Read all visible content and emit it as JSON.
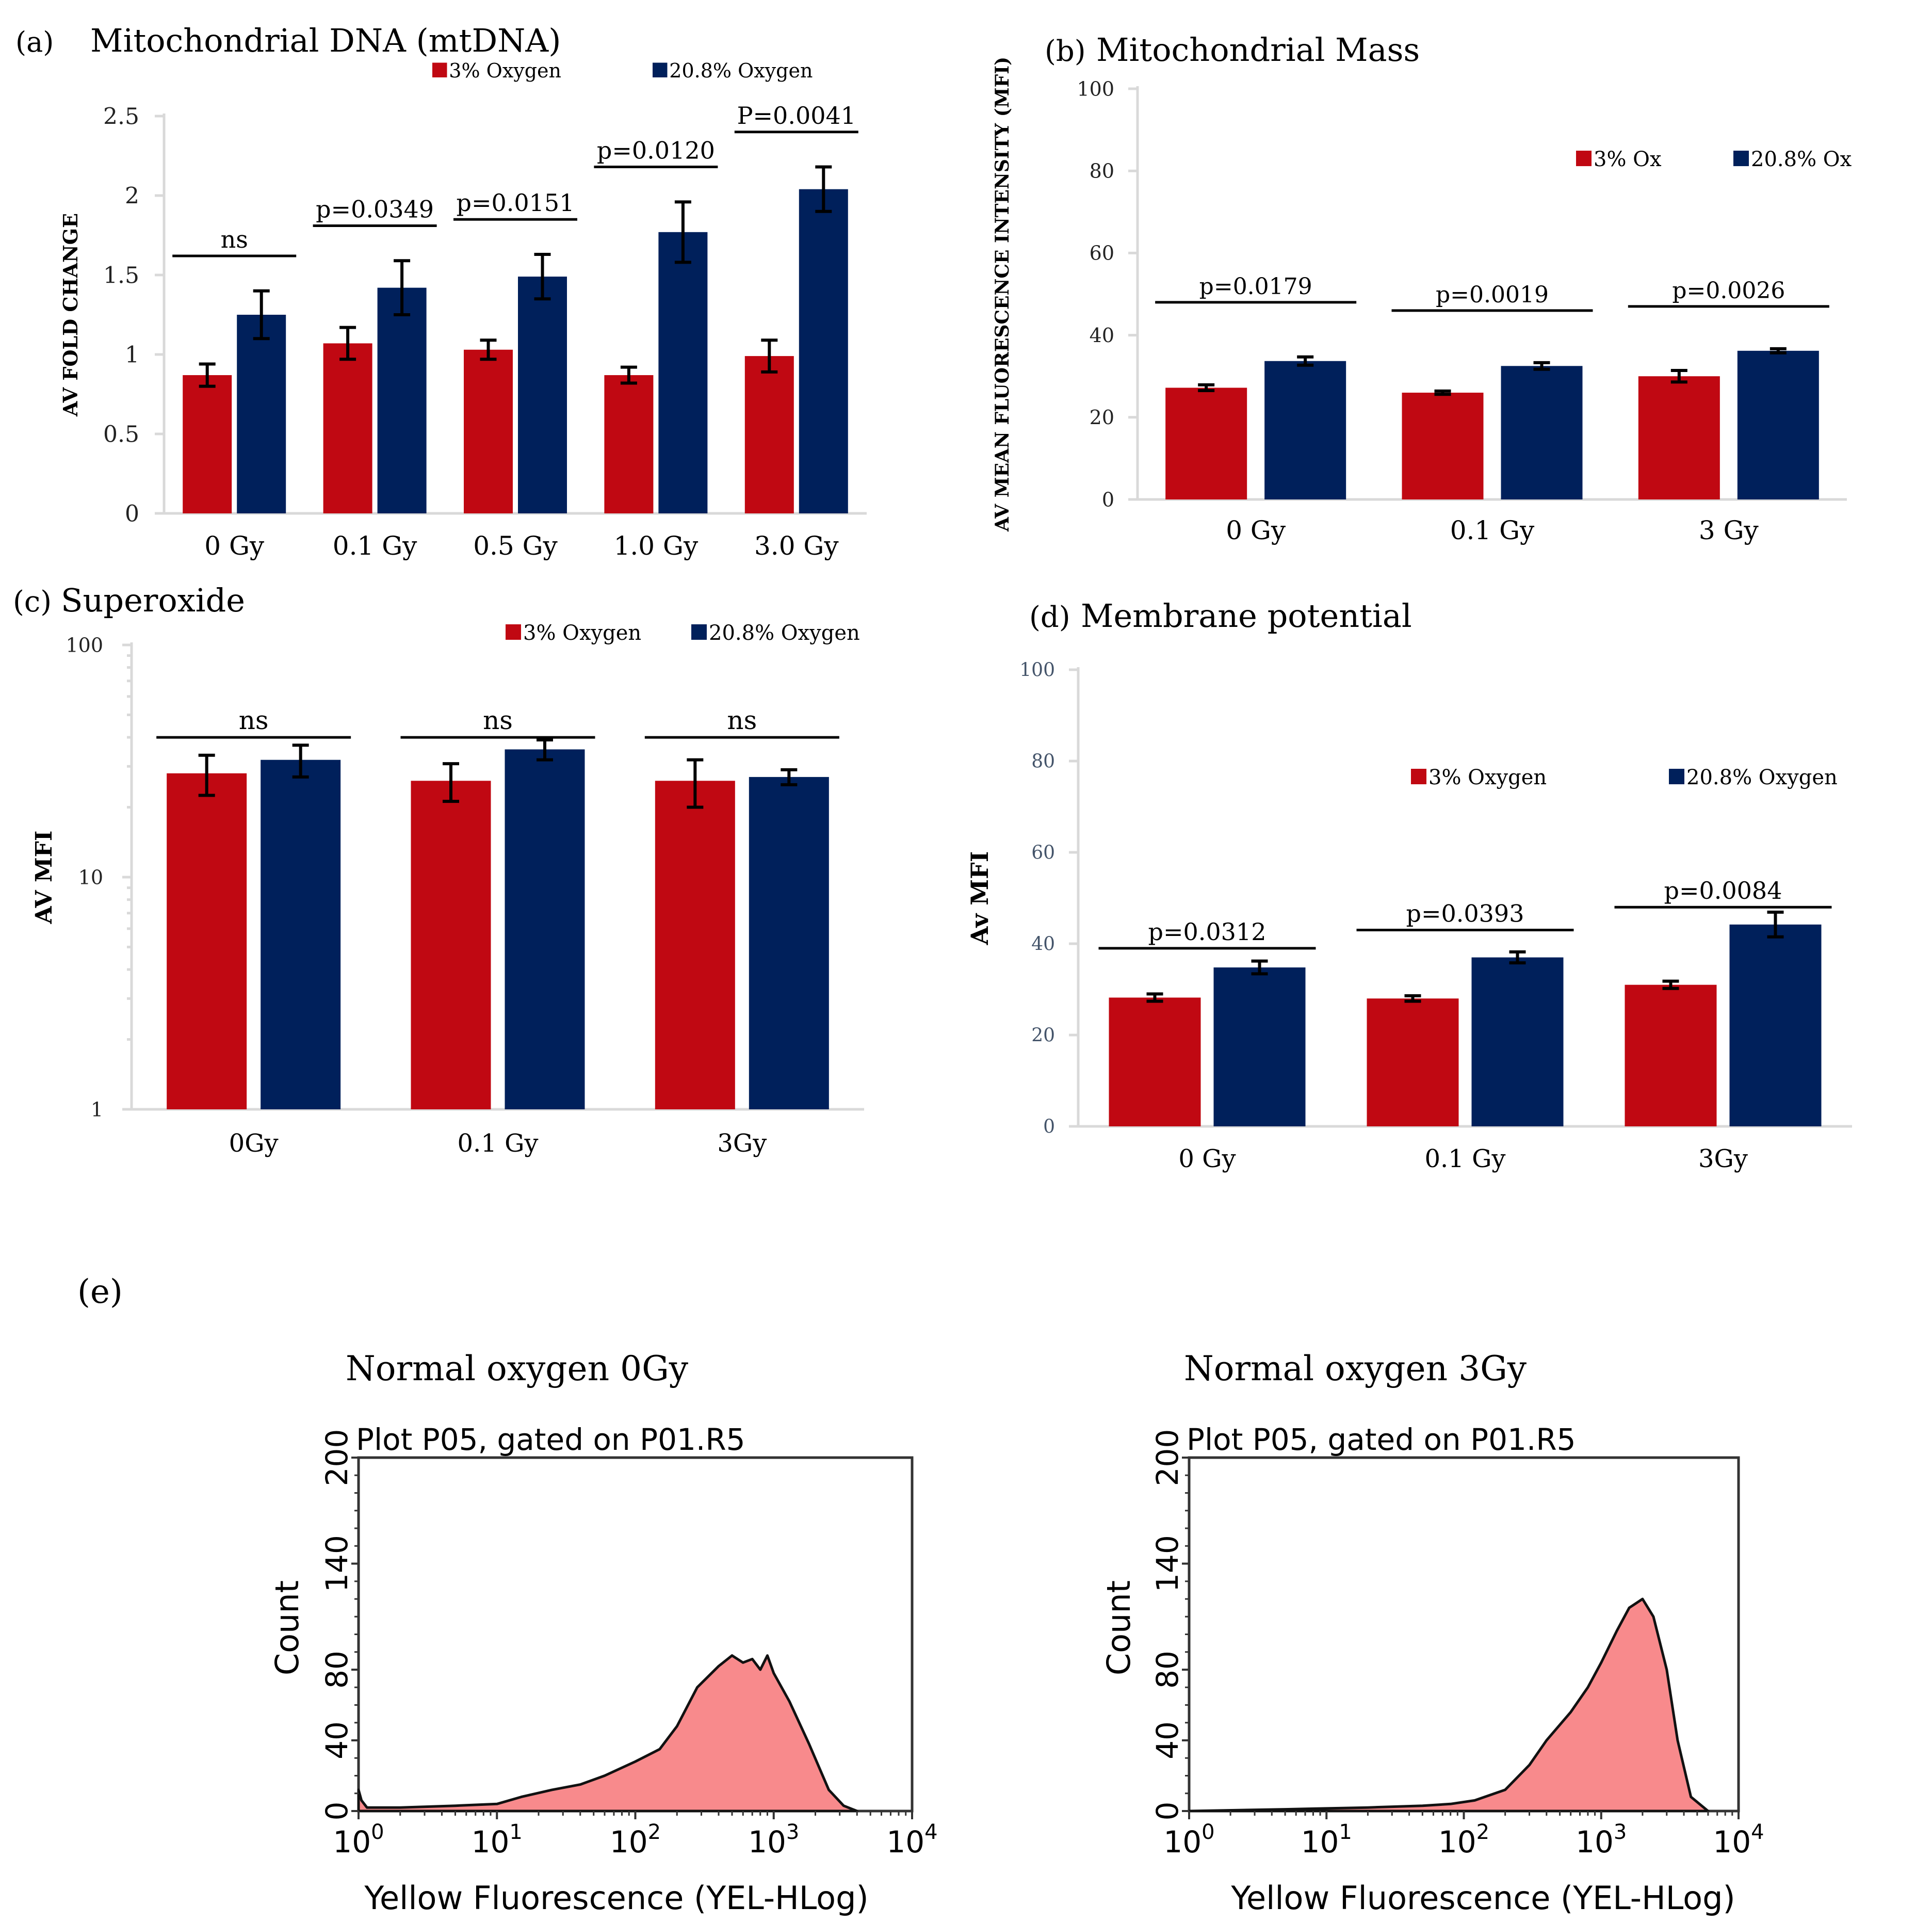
{
  "colors": {
    "red": "#c00812",
    "navy": "#00205b",
    "hist_fill": "#f88a8c",
    "hist_line": "#111111"
  },
  "chart_data": [
    {
      "id": "a",
      "type": "bar",
      "panel_label": "(a)",
      "title": "Mitochondrial DNA (mtDNA)",
      "ylabel": "AV FOLD CHANGE",
      "xlabel": "",
      "ylim": [
        0,
        2.5
      ],
      "yscale": "linear",
      "yticks": [
        "0",
        "0.5",
        "1",
        "1.5",
        "2",
        "2.5"
      ],
      "categories": [
        "0 Gy",
        "0.1 Gy",
        "0.5 Gy",
        "1.0 Gy",
        "3.0 Gy"
      ],
      "series": [
        {
          "name": "3% Oxygen",
          "color": "red",
          "values": [
            0.87,
            1.07,
            1.03,
            0.87,
            0.99
          ],
          "errors": [
            0.07,
            0.1,
            0.06,
            0.05,
            0.1
          ]
        },
        {
          "name": "20.8% Oxygen",
          "color": "navy",
          "values": [
            1.25,
            1.42,
            1.49,
            1.77,
            2.04
          ],
          "errors": [
            0.15,
            0.17,
            0.14,
            0.19,
            0.14
          ]
        }
      ],
      "annotations": [
        "ns",
        "p=0.0349",
        "p=0.0151",
        "p=0.0120",
        "P=0.0041"
      ],
      "legend": "top"
    },
    {
      "id": "b",
      "type": "bar",
      "panel_label": "(b)",
      "title": "Mitochondrial Mass",
      "ylabel": "AV  MEAN FLUORESCENCE INTENSITY (MFI)",
      "xlabel": "",
      "ylim": [
        0,
        100
      ],
      "yscale": "linear",
      "yticks": [
        "0",
        "20",
        "40",
        "60",
        "80",
        "100"
      ],
      "categories": [
        "0 Gy",
        "0.1 Gy",
        "3 Gy"
      ],
      "series": [
        {
          "name": "3% Ox",
          "color": "red",
          "values": [
            27.2,
            26,
            30
          ],
          "errors": [
            0.7,
            0.4,
            1.4
          ]
        },
        {
          "name": "20.8% Ox",
          "color": "navy",
          "values": [
            33.7,
            32.5,
            36.2
          ],
          "errors": [
            1,
            0.8,
            0.5
          ]
        }
      ],
      "annotations": [
        "p=0.0179",
        "p=0.0019",
        "p=0.0026"
      ],
      "legend": "top-right"
    },
    {
      "id": "c",
      "type": "bar",
      "panel_label": "(c)",
      "title": "Superoxide",
      "ylabel": "AV MFI",
      "xlabel": "",
      "ylim": [
        1,
        100
      ],
      "yscale": "log",
      "yticks": [
        "1",
        "10",
        "100"
      ],
      "categories": [
        "0Gy",
        "0.1 Gy",
        "3Gy"
      ],
      "series": [
        {
          "name": "3% Oxygen",
          "color": "red",
          "values": [
            28,
            26,
            26
          ],
          "errors": [
            5.5,
            4.8,
            6
          ]
        },
        {
          "name": "20.8% Oxygen",
          "color": "navy",
          "values": [
            32,
            35.5,
            27
          ],
          "errors": [
            5,
            3.5,
            2
          ]
        }
      ],
      "annotations": [
        "ns",
        "ns",
        "ns"
      ],
      "legend": "top"
    },
    {
      "id": "d",
      "type": "bar",
      "panel_label": "(d)",
      "title": "Membrane potential",
      "ylabel": "Av  MFI",
      "xlabel": "",
      "ylim": [
        0,
        100
      ],
      "yscale": "linear",
      "yticks": [
        "0",
        "20",
        "40",
        "60",
        "80",
        "100"
      ],
      "categories": [
        "0 Gy",
        "0.1 Gy",
        "3Gy"
      ],
      "series": [
        {
          "name": "3% Oxygen",
          "color": "red",
          "values": [
            28.2,
            28,
            31
          ],
          "errors": [
            0.8,
            0.6,
            0.8
          ]
        },
        {
          "name": "20.8% Oxygen",
          "color": "navy",
          "values": [
            34.8,
            37,
            44.2
          ],
          "errors": [
            1.4,
            1.2,
            2.7
          ]
        }
      ],
      "annotations": [
        "p=0.0312",
        "p=0.0393",
        "p=0.0084"
      ],
      "legend": "top-right"
    },
    {
      "id": "e1",
      "type": "area",
      "title": "Normal oxygen 0Gy",
      "subtitle": "Plot P05, gated on P01.R5",
      "ylabel": "Count",
      "xlabel": "Yellow Fluorescence (YEL-HLog)",
      "xscale": "log",
      "xlim": [
        1,
        10000
      ],
      "ylim": [
        0,
        200
      ],
      "yticks": [
        "0",
        "40",
        "80",
        "140",
        "200"
      ],
      "xticks": [
        {
          "base": "10",
          "exp": "0"
        },
        {
          "base": "10",
          "exp": "1"
        },
        {
          "base": "10",
          "exp": "2"
        },
        {
          "base": "10",
          "exp": "3"
        },
        {
          "base": "10",
          "exp": "4"
        }
      ],
      "x": [
        1,
        1.05,
        1.15,
        2,
        5,
        10,
        15,
        25,
        40,
        60,
        100,
        150,
        200,
        280,
        400,
        500,
        600,
        700,
        800,
        900,
        1000,
        1300,
        1800,
        2500,
        3200,
        4000
      ],
      "y": [
        12,
        6,
        2,
        2,
        3,
        4,
        8,
        12,
        15,
        20,
        28,
        35,
        48,
        70,
        82,
        88,
        84,
        86,
        80,
        88,
        78,
        62,
        38,
        12,
        3,
        0
      ]
    },
    {
      "id": "e2",
      "type": "area",
      "title": "Normal oxygen 3Gy",
      "subtitle": "Plot P05, gated on P01.R5",
      "ylabel": "Count",
      "xlabel": "Yellow Fluorescence (YEL-HLog)",
      "xscale": "log",
      "xlim": [
        1,
        10000
      ],
      "ylim": [
        0,
        200
      ],
      "yticks": [
        "0",
        "40",
        "80",
        "140",
        "200"
      ],
      "xticks": [
        {
          "base": "10",
          "exp": "0"
        },
        {
          "base": "10",
          "exp": "1"
        },
        {
          "base": "10",
          "exp": "2"
        },
        {
          "base": "10",
          "exp": "3"
        },
        {
          "base": "10",
          "exp": "4"
        }
      ],
      "x": [
        1,
        5,
        20,
        50,
        80,
        120,
        200,
        300,
        400,
        600,
        800,
        1000,
        1300,
        1600,
        2000,
        2400,
        3000,
        3600,
        4500,
        6000
      ],
      "y": [
        0,
        1,
        2,
        3,
        4,
        6,
        12,
        26,
        40,
        56,
        70,
        84,
        102,
        115,
        120,
        110,
        80,
        40,
        8,
        0
      ]
    }
  ],
  "panel_e_label": "(e)"
}
